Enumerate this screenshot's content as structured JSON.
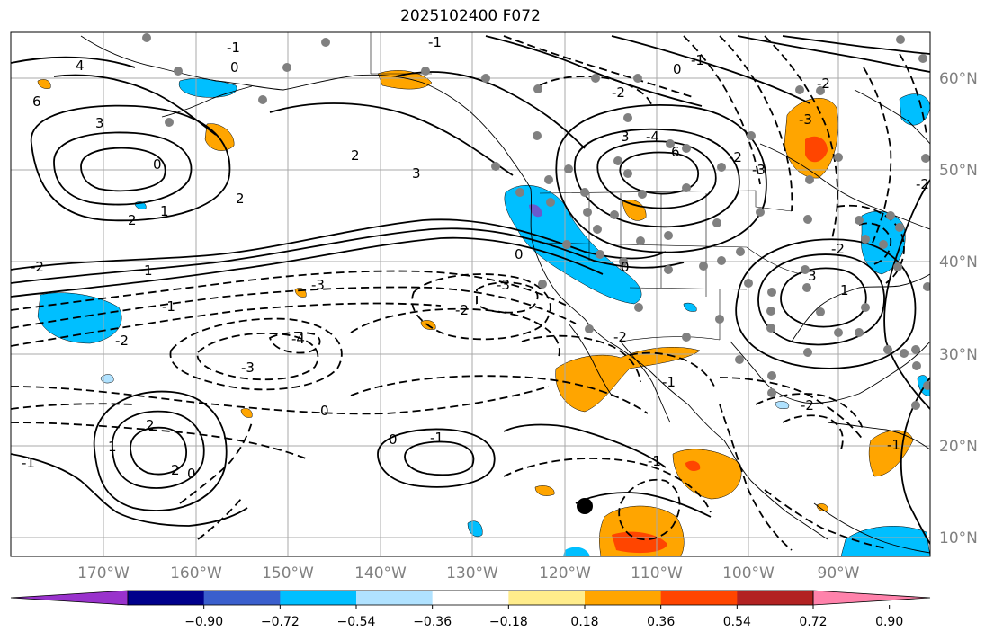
{
  "title": "2025102400 F072",
  "longitude_labels": [
    "170°W",
    "160°W",
    "150°W",
    "140°W",
    "130°W",
    "120°W",
    "110°W",
    "100°W",
    "90°W"
  ],
  "latitude_labels": [
    "60°N",
    "50°N",
    "40°N",
    "30°N",
    "20°N",
    "10°N"
  ],
  "colorbar": {
    "ticks": [
      "−0.90",
      "−0.72",
      "−0.54",
      "−0.36",
      "−0.18",
      "0.18",
      "0.36",
      "0.54",
      "0.72",
      "0.90"
    ],
    "colors": [
      "#9932cc",
      "#00008b",
      "#3a5fcd",
      "#00bfff",
      "#b0e2ff",
      "#ffffff",
      "#ffec8b",
      "#ffa500",
      "#ff4500",
      "#b22222",
      "#ff82ab"
    ]
  },
  "contour_labels": [
    "-1",
    "0",
    "4",
    "6",
    "3",
    "-1",
    "-2",
    "0",
    "-2",
    "-2",
    "-1",
    "3",
    "-4",
    "6",
    "-3",
    "-3",
    "0",
    "2",
    "1",
    "2",
    "2",
    "1",
    "3",
    "-2",
    "-1",
    "-2",
    "-3",
    "-4",
    "-3",
    "-2",
    "-3",
    "-2",
    "0",
    "3",
    "-2",
    "0",
    "-1",
    "2",
    "1",
    "-2",
    "0",
    "-1",
    "2",
    "0",
    "-1",
    "-1",
    "-2",
    "0",
    "-1",
    "1"
  ],
  "storm_marker": "black-dot"
}
